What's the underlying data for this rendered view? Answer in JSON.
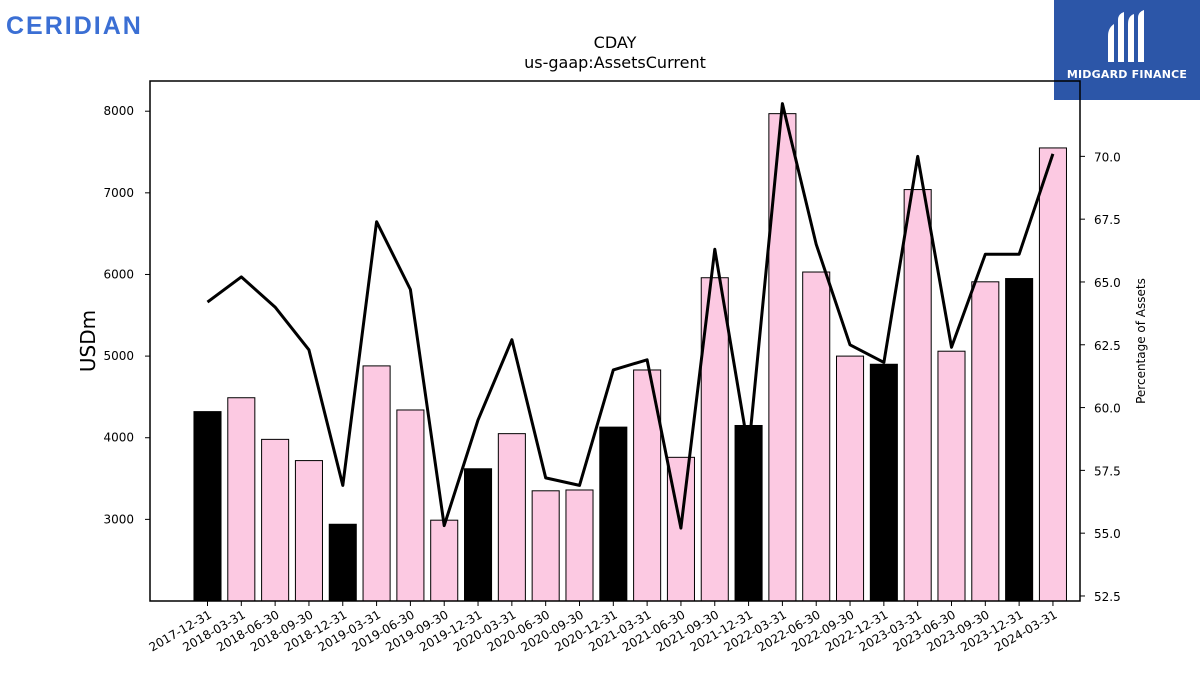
{
  "brand": {
    "name": "CERIDIAN",
    "color": "#3b6fd4"
  },
  "badge": {
    "name": "MIDGARD FINANCE",
    "background": "#2c56a8"
  },
  "chart_data": {
    "type": "bar",
    "title": "CDAY",
    "subtitle": "us-gaap:AssetsCurrent",
    "ylabel": "USDm",
    "y2label": "Percentage of Assets",
    "ylim": [
      2000,
      8370
    ],
    "y2lim": [
      52.3,
      73.0
    ],
    "yticks": [
      3000,
      4000,
      5000,
      6000,
      7000,
      8000
    ],
    "y2ticks": [
      "52.5",
      "55.0",
      "57.5",
      "60.0",
      "62.5",
      "65.0",
      "67.5",
      "70.0"
    ],
    "categories": [
      "2017-12-31",
      "2018-03-31",
      "2018-06-30",
      "2018-09-30",
      "2018-12-31",
      "2019-03-31",
      "2019-06-30",
      "2019-09-30",
      "2019-12-31",
      "2020-03-31",
      "2020-06-30",
      "2020-09-30",
      "2020-12-31",
      "2021-03-31",
      "2021-06-30",
      "2021-09-30",
      "2021-12-31",
      "2022-03-31",
      "2022-06-30",
      "2022-09-30",
      "2022-12-31",
      "2023-03-31",
      "2023-06-30",
      "2023-09-30",
      "2023-12-31",
      "2024-03-31"
    ],
    "series": [
      {
        "values": [
          4320,
          4490,
          3980,
          3720,
          2940,
          4880,
          4340,
          2990,
          3620,
          4050,
          3350,
          3360,
          4130,
          4830,
          3760,
          5960,
          4150,
          7970,
          6030,
          5000,
          4900,
          7040,
          5060,
          5910,
          5950,
          7550
        ]
      },
      {
        "values": [
          64.2,
          65.2,
          64.0,
          62.3,
          56.9,
          67.4,
          64.7,
          55.3,
          59.5,
          62.7,
          57.2,
          56.9,
          61.5,
          61.9,
          55.2,
          66.3,
          58.3,
          72.1,
          66.5,
          62.5,
          61.8,
          70.0,
          62.4,
          66.1,
          66.1,
          70.1
        ]
      }
    ],
    "bar_highlight": [
      true,
      false,
      false,
      false,
      true,
      false,
      false,
      false,
      true,
      false,
      false,
      false,
      true,
      false,
      false,
      false,
      true,
      false,
      false,
      false,
      true,
      false,
      false,
      false,
      true,
      false
    ],
    "colors": {
      "highlight": "#000000",
      "normal": "#fcc9e2",
      "line": "#000000"
    }
  }
}
